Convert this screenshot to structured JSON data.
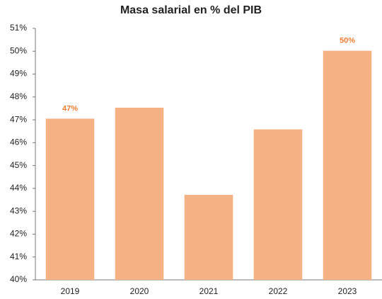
{
  "chart_data": {
    "type": "bar",
    "title": "Masa salarial en % del PIB",
    "categories": [
      "2019",
      "2020",
      "2021",
      "2022",
      "2023"
    ],
    "values": [
      47.05,
      47.53,
      43.72,
      46.58,
      50.02
    ],
    "value_labels": [
      "47%",
      null,
      null,
      null,
      "50%"
    ],
    "color": "#f4b183",
    "label_color": "#ed7d31",
    "ylim": [
      40,
      51
    ],
    "yticks": [
      {
        "value": 40,
        "label": "40%"
      },
      {
        "value": 41,
        "label": "41%"
      },
      {
        "value": 42,
        "label": "42%"
      },
      {
        "value": 43,
        "label": "43%"
      },
      {
        "value": 44,
        "label": "44%"
      },
      {
        "value": 45,
        "label": "45%"
      },
      {
        "value": 46,
        "label": "46%"
      },
      {
        "value": 47,
        "label": "47%"
      },
      {
        "value": 48,
        "label": "48%"
      },
      {
        "value": 49,
        "label": "49%"
      },
      {
        "value": 50,
        "label": "50%"
      },
      {
        "value": 51,
        "label": "51%"
      }
    ],
    "grid": false
  }
}
